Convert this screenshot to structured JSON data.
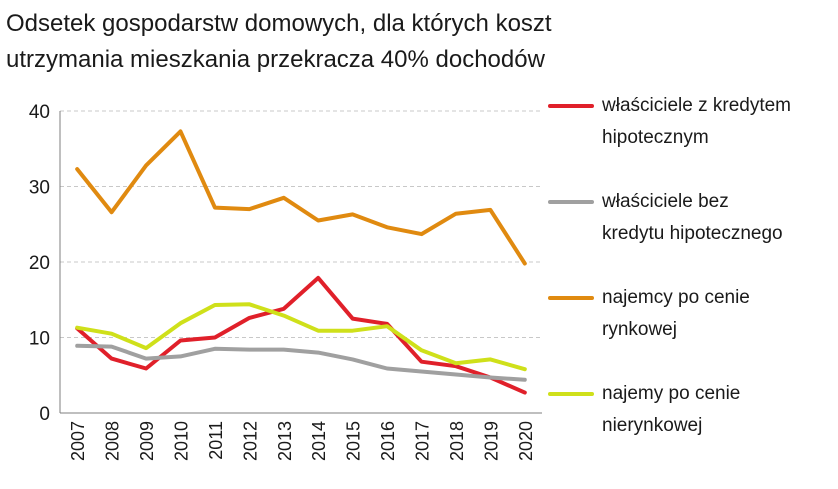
{
  "title_lines": [
    "Odsetek gospodarstw domowych, dla których koszt",
    "utrzymania mieszkania przekracza 40% dochodów"
  ],
  "chart_data": {
    "type": "line",
    "title": "Odsetek gospodarstw domowych, dla których koszt utrzymania mieszkania przekracza 40% dochodów",
    "x": [
      "2007",
      "2008",
      "2009",
      "2010",
      "2011",
      "2012",
      "2013",
      "2014",
      "2015",
      "2016",
      "2017",
      "2018",
      "2019",
      "2020"
    ],
    "ylim": [
      0,
      40
    ],
    "yticks": [
      0,
      10,
      20,
      30,
      40
    ],
    "grid": true,
    "legend_position": "right",
    "series": [
      {
        "name": "właściciele z kredytem hipotecznym",
        "legend_lines": [
          "właściciele z kredytem",
          "hipotecznym"
        ],
        "color": "#e0202a",
        "values": [
          11.2,
          7.2,
          5.9,
          9.6,
          10.0,
          12.6,
          13.8,
          17.9,
          12.5,
          11.8,
          6.8,
          6.2,
          4.7,
          2.7
        ]
      },
      {
        "name": "właściciele bez kredytu hipotecznego",
        "legend_lines": [
          "właściciele bez",
          "kredytu hipotecznego"
        ],
        "color": "#a0a0a0",
        "values": [
          8.9,
          8.8,
          7.2,
          7.5,
          8.5,
          8.4,
          8.4,
          8.0,
          7.1,
          5.9,
          5.5,
          5.1,
          4.7,
          4.4
        ]
      },
      {
        "name": "najemcy po cenie rynkowej",
        "legend_lines": [
          "najemcy po cenie",
          "rynkowej"
        ],
        "color": "#e08a10",
        "values": [
          32.3,
          26.6,
          32.8,
          37.3,
          27.2,
          27.0,
          28.5,
          25.5,
          26.3,
          24.6,
          23.7,
          26.4,
          26.9,
          19.8
        ]
      },
      {
        "name": "najemy po cenie nierynkowej",
        "legend_lines": [
          "najemy po cenie",
          "nierynkowej"
        ],
        "color": "#cfe01a",
        "values": [
          11.3,
          10.5,
          8.6,
          11.9,
          14.3,
          14.4,
          12.9,
          10.9,
          10.9,
          11.5,
          8.3,
          6.6,
          7.1,
          5.8
        ]
      }
    ]
  }
}
